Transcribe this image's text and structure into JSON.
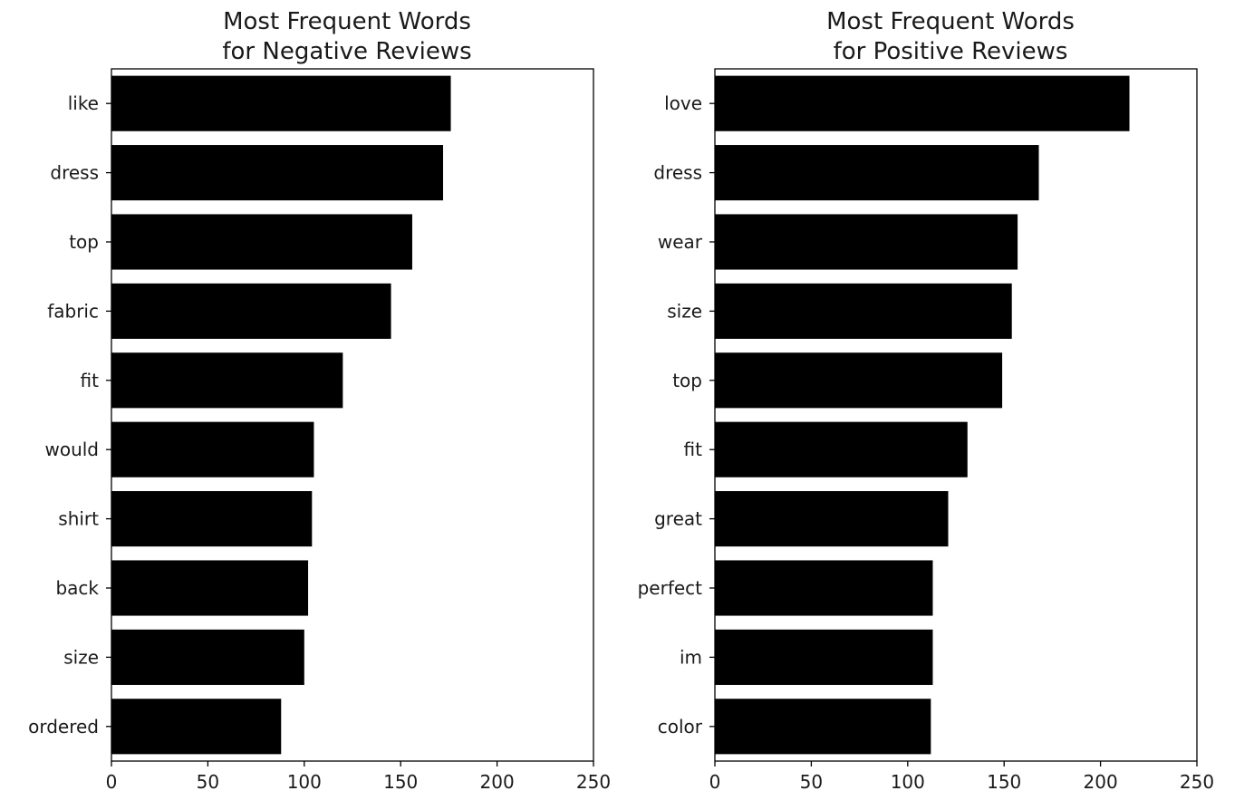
{
  "chart_data": [
    {
      "type": "bar",
      "orientation": "horizontal",
      "title": "Most Frequent Words\nfor Negative Reviews",
      "categories": [
        "like",
        "dress",
        "top",
        "fabric",
        "fit",
        "would",
        "shirt",
        "back",
        "size",
        "ordered"
      ],
      "values": [
        176,
        172,
        156,
        145,
        120,
        105,
        104,
        102,
        100,
        88
      ],
      "xlim": [
        0,
        250
      ],
      "xticks": [
        0,
        50,
        100,
        150,
        200,
        250
      ],
      "bar_color": "#000000",
      "grid": false
    },
    {
      "type": "bar",
      "orientation": "horizontal",
      "title": "Most Frequent Words\nfor Positive Reviews",
      "categories": [
        "love",
        "dress",
        "wear",
        "size",
        "top",
        "fit",
        "great",
        "perfect",
        "im",
        "color"
      ],
      "values": [
        215,
        168,
        157,
        154,
        149,
        131,
        121,
        113,
        113,
        112
      ],
      "xlim": [
        0,
        250
      ],
      "xticks": [
        0,
        50,
        100,
        150,
        200,
        250
      ],
      "bar_color": "#000000",
      "grid": false
    }
  ]
}
